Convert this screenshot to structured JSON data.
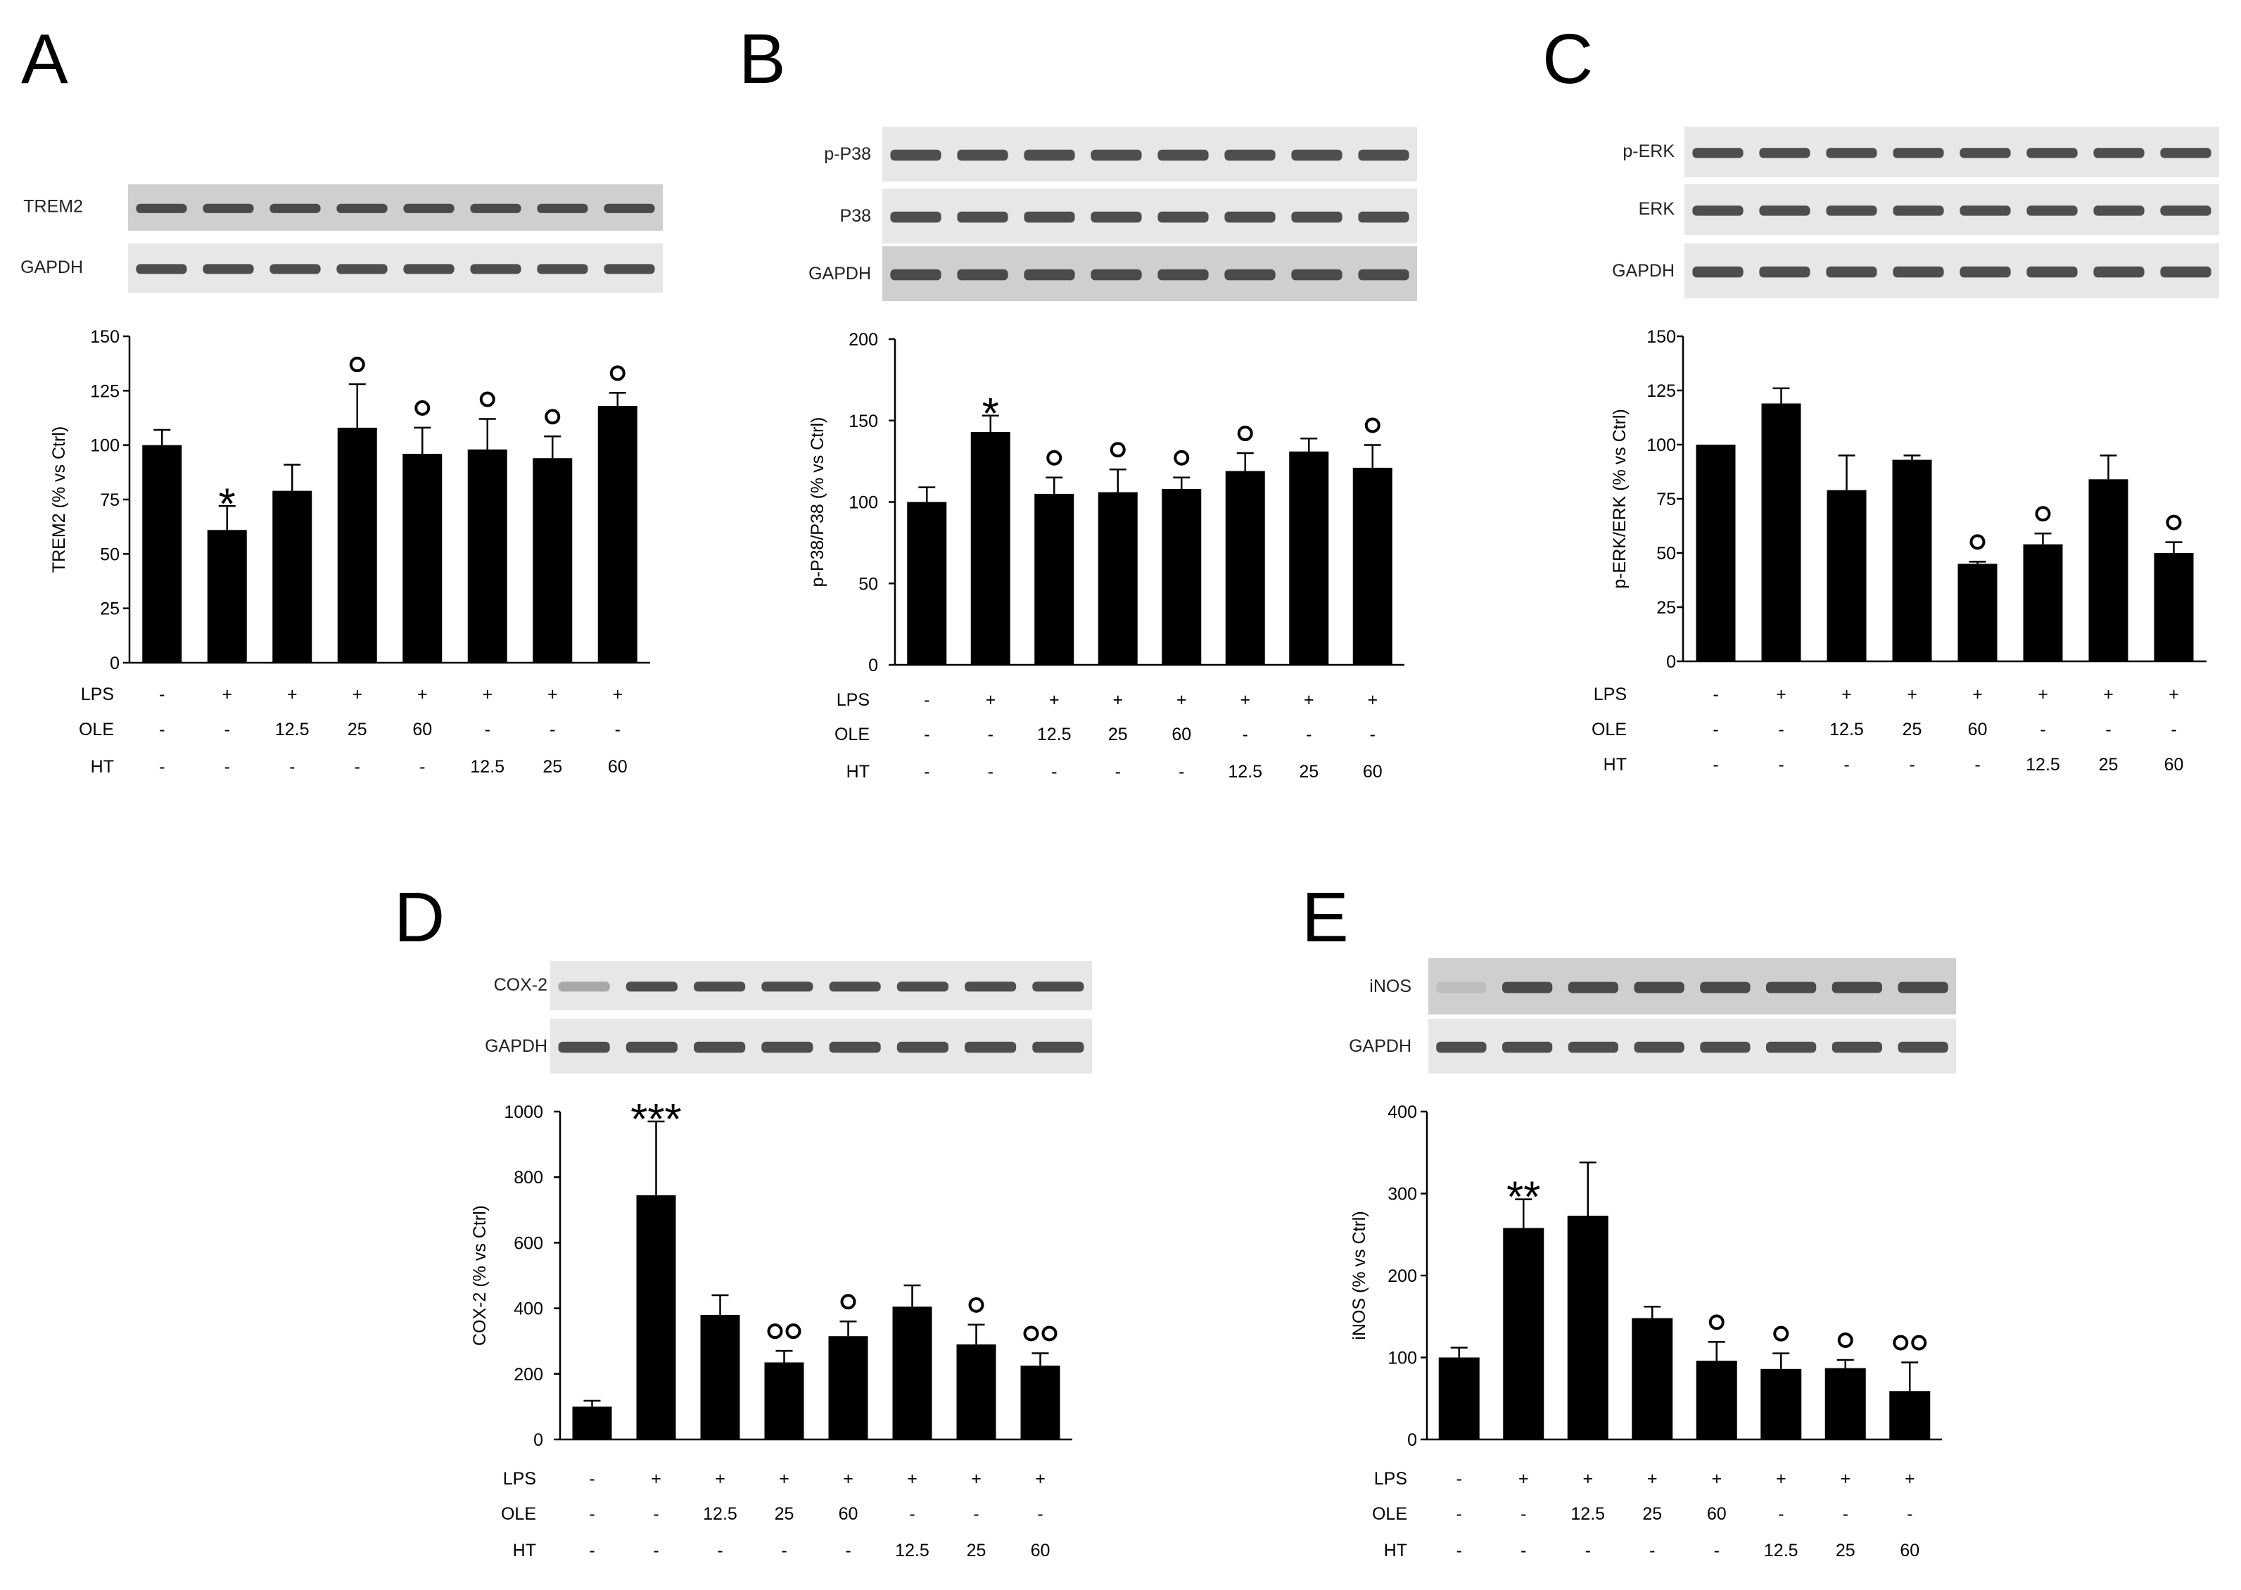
{
  "chart_data": [
    {
      "id": "A",
      "type": "bar",
      "blots": [
        "TREM2",
        "GAPDH"
      ],
      "ylabel": "TREM2 (% vs Ctrl)",
      "ylim": [
        0,
        150
      ],
      "yticks": [
        0,
        25,
        50,
        75,
        100,
        125,
        150
      ],
      "values": [
        100,
        61,
        79,
        108,
        96,
        98,
        94,
        118
      ],
      "errors": [
        7,
        11,
        12,
        20,
        12,
        14,
        10,
        6
      ],
      "significance": [
        "",
        "*",
        "",
        "°",
        "°",
        "°",
        "°",
        "°"
      ],
      "treatments": {
        "LPS": [
          "-",
          "+",
          "+",
          "+",
          "+",
          "+",
          "+",
          "+"
        ],
        "OLE": [
          "-",
          "-",
          "12.5",
          "25",
          "60",
          "-",
          "-",
          "-"
        ],
        "HT": [
          "-",
          "-",
          "-",
          "-",
          "-",
          "12.5",
          "25",
          "60"
        ]
      }
    },
    {
      "id": "B",
      "type": "bar",
      "blots": [
        "p-P38",
        "P38",
        "GAPDH"
      ],
      "ylabel": "p-P38/P38 (% vs Ctrl)",
      "ylim": [
        0,
        200
      ],
      "yticks": [
        0,
        50,
        100,
        150,
        200
      ],
      "values": [
        100,
        143,
        105,
        106,
        108,
        119,
        131,
        121
      ],
      "errors": [
        9,
        10,
        10,
        14,
        7,
        11,
        8,
        14
      ],
      "significance": [
        "",
        "*",
        "°",
        "°",
        "°",
        "°",
        "",
        "°"
      ],
      "treatments": {
        "LPS": [
          "-",
          "+",
          "+",
          "+",
          "+",
          "+",
          "+",
          "+"
        ],
        "OLE": [
          "-",
          "-",
          "12.5",
          "25",
          "60",
          "-",
          "-",
          "-"
        ],
        "HT": [
          "-",
          "-",
          "-",
          "-",
          "-",
          "12.5",
          "25",
          "60"
        ]
      }
    },
    {
      "id": "C",
      "type": "bar",
      "blots": [
        "p-ERK",
        "ERK",
        "GAPDH"
      ],
      "ylabel": "p-ERK/ERK (% vs Ctrl)",
      "ylim": [
        0,
        150
      ],
      "yticks": [
        0,
        25,
        50,
        75,
        100,
        125,
        150
      ],
      "values": [
        100,
        119,
        79,
        93,
        45,
        54,
        84,
        50
      ],
      "errors": [
        0,
        7,
        16,
        2,
        1,
        5,
        11,
        5
      ],
      "significance": [
        "",
        "",
        "",
        "",
        "°",
        "°",
        "",
        "°"
      ],
      "treatments": {
        "LPS": [
          "-",
          "+",
          "+",
          "+",
          "+",
          "+",
          "+",
          "+"
        ],
        "OLE": [
          "-",
          "-",
          "12.5",
          "25",
          "60",
          "-",
          "-",
          "-"
        ],
        "HT": [
          "-",
          "-",
          "-",
          "-",
          "-",
          "12.5",
          "25",
          "60"
        ]
      }
    },
    {
      "id": "D",
      "type": "bar",
      "blots": [
        "COX-2",
        "GAPDH"
      ],
      "ylabel": "COX-2 (% vs Ctrl)",
      "ylim": [
        0,
        1000
      ],
      "yticks": [
        0,
        200,
        400,
        600,
        800,
        1000
      ],
      "values": [
        100,
        745,
        380,
        235,
        315,
        405,
        290,
        225
      ],
      "errors": [
        18,
        225,
        60,
        35,
        45,
        65,
        60,
        38
      ],
      "significance": [
        "",
        "***",
        "",
        "°°",
        "°",
        "",
        "°",
        "°°"
      ],
      "treatments": {
        "LPS": [
          "-",
          "+",
          "+",
          "+",
          "+",
          "+",
          "+",
          "+"
        ],
        "OLE": [
          "-",
          "-",
          "12.5",
          "25",
          "60",
          "-",
          "-",
          "-"
        ],
        "HT": [
          "-",
          "-",
          "-",
          "-",
          "-",
          "12.5",
          "25",
          "60"
        ]
      }
    },
    {
      "id": "E",
      "type": "bar",
      "blots": [
        "iNOS",
        "GAPDH"
      ],
      "ylabel": "iNOS (% vs Ctrl)",
      "ylim": [
        0,
        400
      ],
      "yticks": [
        0,
        100,
        200,
        300,
        400
      ],
      "values": [
        100,
        258,
        273,
        148,
        96,
        86,
        87,
        59
      ],
      "errors": [
        12,
        35,
        65,
        14,
        23,
        19,
        10,
        35
      ],
      "significance": [
        "",
        "**",
        "",
        "",
        "°",
        "°",
        "°",
        "°°"
      ],
      "treatments": {
        "LPS": [
          "-",
          "+",
          "+",
          "+",
          "+",
          "+",
          "+",
          "+"
        ],
        "OLE": [
          "-",
          "-",
          "12.5",
          "25",
          "60",
          "-",
          "-",
          "-"
        ],
        "HT": [
          "-",
          "-",
          "-",
          "-",
          "-",
          "12.5",
          "25",
          "60"
        ]
      }
    }
  ],
  "colors": {
    "bar": "#000000",
    "background": "#ffffff"
  }
}
